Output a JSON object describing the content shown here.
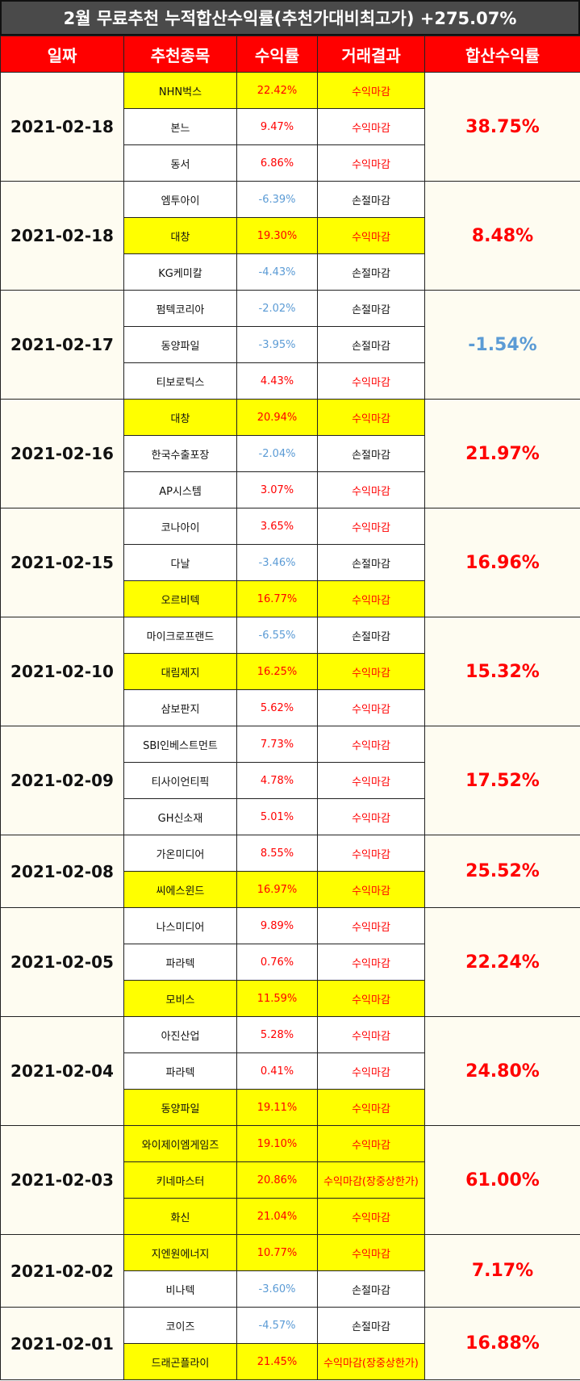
{
  "title": "2월 무료추천 누적합산수익률(추천가대비최고가) +275.07%",
  "headers": [
    "일짜",
    "추천종목",
    "수익률",
    "거래결과",
    "합산수익률"
  ],
  "groups": [
    {
      "date": "2021-02-18",
      "total": "38.75%",
      "total_sign": "pos",
      "rows": [
        {
          "name": "NHN벅스",
          "ret": "22.42%",
          "result": "수익마감",
          "hl": true
        },
        {
          "name": "본느",
          "ret": "9.47%",
          "result": "수익마감",
          "hl": false
        },
        {
          "name": "동서",
          "ret": "6.86%",
          "result": "수익마감",
          "hl": false
        }
      ]
    },
    {
      "date": "2021-02-18",
      "total": "8.48%",
      "total_sign": "pos",
      "rows": [
        {
          "name": "엠투아이",
          "ret": "-6.39%",
          "result": "손절마감",
          "hl": false
        },
        {
          "name": "대창",
          "ret": "19.30%",
          "result": "수익마감",
          "hl": true
        },
        {
          "name": "KG케미칼",
          "ret": "-4.43%",
          "result": "손절마감",
          "hl": false
        }
      ]
    },
    {
      "date": "2021-02-17",
      "total": "-1.54%",
      "total_sign": "neg",
      "rows": [
        {
          "name": "펌텍코리아",
          "ret": "-2.02%",
          "result": "손절마감",
          "hl": false
        },
        {
          "name": "동양파일",
          "ret": "-3.95%",
          "result": "손절마감",
          "hl": false
        },
        {
          "name": "티보로틱스",
          "ret": "4.43%",
          "result": "수익마감",
          "hl": false
        }
      ]
    },
    {
      "date": "2021-02-16",
      "total": "21.97%",
      "total_sign": "pos",
      "rows": [
        {
          "name": "대창",
          "ret": "20.94%",
          "result": "수익마감",
          "hl": true
        },
        {
          "name": "한국수출포장",
          "ret": "-2.04%",
          "result": "손절마감",
          "hl": false
        },
        {
          "name": "AP시스템",
          "ret": "3.07%",
          "result": "수익마감",
          "hl": false
        }
      ]
    },
    {
      "date": "2021-02-15",
      "total": "16.96%",
      "total_sign": "pos",
      "rows": [
        {
          "name": "코나아이",
          "ret": "3.65%",
          "result": "수익마감",
          "hl": false
        },
        {
          "name": "다날",
          "ret": "-3.46%",
          "result": "손절마감",
          "hl": false
        },
        {
          "name": "오르비텍",
          "ret": "16.77%",
          "result": "수익마감",
          "hl": true
        }
      ]
    },
    {
      "date": "2021-02-10",
      "total": "15.32%",
      "total_sign": "pos",
      "rows": [
        {
          "name": "마이크로프랜드",
          "ret": "-6.55%",
          "result": "손절마감",
          "hl": false
        },
        {
          "name": "대림제지",
          "ret": "16.25%",
          "result": "수익마감",
          "hl": true
        },
        {
          "name": "삼보판지",
          "ret": "5.62%",
          "result": "수익마감",
          "hl": false
        }
      ]
    },
    {
      "date": "2021-02-09",
      "total": "17.52%",
      "total_sign": "pos",
      "rows": [
        {
          "name": "SBI인베스트먼트",
          "ret": "7.73%",
          "result": "수익마감",
          "hl": false
        },
        {
          "name": "티사이언티픽",
          "ret": "4.78%",
          "result": "수익마감",
          "hl": false
        },
        {
          "name": "GH신소재",
          "ret": "5.01%",
          "result": "수익마감",
          "hl": false
        }
      ]
    },
    {
      "date": "2021-02-08",
      "total": "25.52%",
      "total_sign": "pos",
      "rows": [
        {
          "name": "가온미디어",
          "ret": "8.55%",
          "result": "수익마감",
          "hl": false
        },
        {
          "name": "씨에스윈드",
          "ret": "16.97%",
          "result": "수익마감",
          "hl": true
        }
      ]
    },
    {
      "date": "2021-02-05",
      "total": "22.24%",
      "total_sign": "pos",
      "rows": [
        {
          "name": "나스미디어",
          "ret": "9.89%",
          "result": "수익마감",
          "hl": false
        },
        {
          "name": "파라텍",
          "ret": "0.76%",
          "result": "수익마감",
          "hl": false
        },
        {
          "name": "모비스",
          "ret": "11.59%",
          "result": "수익마감",
          "hl": true
        }
      ]
    },
    {
      "date": "2021-02-04",
      "total": "24.80%",
      "total_sign": "pos",
      "rows": [
        {
          "name": "아진산업",
          "ret": "5.28%",
          "result": "수익마감",
          "hl": false
        },
        {
          "name": "파라텍",
          "ret": "0.41%",
          "result": "수익마감",
          "hl": false
        },
        {
          "name": "동양파일",
          "ret": "19.11%",
          "result": "수익마감",
          "hl": true
        }
      ]
    },
    {
      "date": "2021-02-03",
      "total": "61.00%",
      "total_sign": "pos",
      "rows": [
        {
          "name": "와이제이엠게임즈",
          "ret": "19.10%",
          "result": "수익마감",
          "hl": true
        },
        {
          "name": "키네마스터",
          "ret": "20.86%",
          "result": "수익마감(장중상한가)",
          "hl": true
        },
        {
          "name": "화신",
          "ret": "21.04%",
          "result": "수익마감",
          "hl": true
        }
      ]
    },
    {
      "date": "2021-02-02",
      "total": "7.17%",
      "total_sign": "pos",
      "rows": [
        {
          "name": "지엔원에너지",
          "ret": "10.77%",
          "result": "수익마감",
          "hl": true
        },
        {
          "name": "비나텍",
          "ret": "-3.60%",
          "result": "손절마감",
          "hl": false
        }
      ]
    },
    {
      "date": "2021-02-01",
      "total": "16.88%",
      "total_sign": "pos",
      "rows": [
        {
          "name": "코이즈",
          "ret": "-4.57%",
          "result": "손절마감",
          "hl": false
        },
        {
          "name": "드래곤플라이",
          "ret": "21.45%",
          "result": "수익마감(장중상한가)",
          "hl": true
        }
      ]
    }
  ]
}
